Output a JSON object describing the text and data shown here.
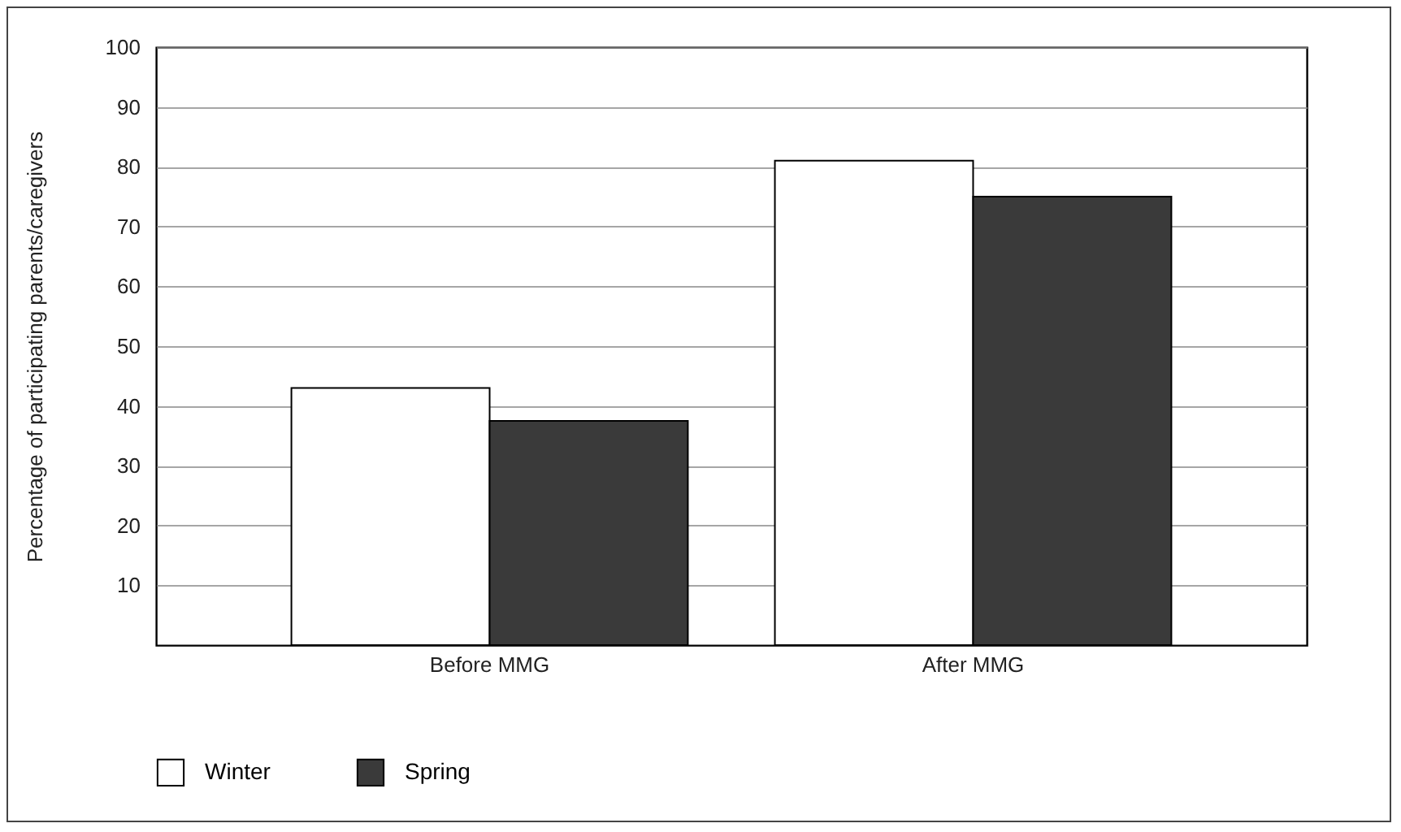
{
  "chart_data": {
    "type": "bar",
    "ylabel": "Percentage of participating parents/caregivers",
    "categories": [
      "Before MMG",
      "After MMG"
    ],
    "series": [
      {
        "name": "Winter",
        "color": "#ffffff",
        "values": [
          43,
          81
        ]
      },
      {
        "name": "Spring",
        "color": "#3a3a3a",
        "values": [
          37.5,
          75
        ]
      }
    ],
    "ylim": [
      0,
      100
    ],
    "yticks": [
      10,
      20,
      30,
      40,
      50,
      60,
      70,
      80,
      90,
      100
    ],
    "grid": "y",
    "legend": "bottom"
  }
}
